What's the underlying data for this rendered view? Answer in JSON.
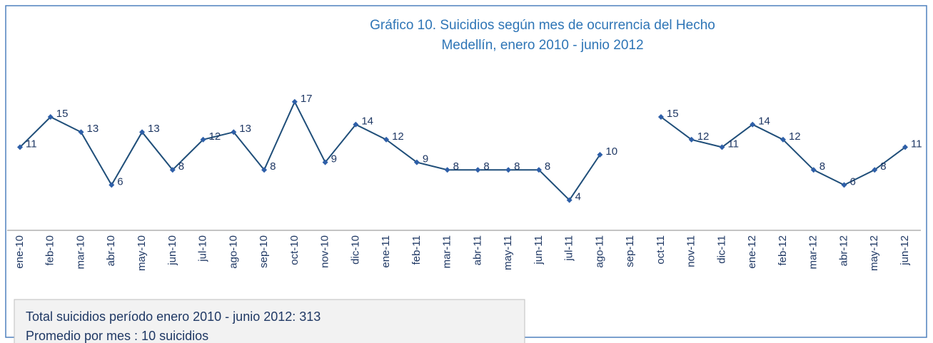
{
  "chart_data": {
    "type": "line",
    "title": "Gráfico 10.  Suicidios según mes de ocurrencia del Hecho",
    "subtitle": "Medellín, enero 2010 - junio 2012",
    "categories": [
      "ene-10",
      "feb-10",
      "mar-10",
      "abr-10",
      "may-10",
      "jun-10",
      "jul-10",
      "ago-10",
      "sep-10",
      "oct-10",
      "nov-10",
      "dic-10",
      "ene-11",
      "feb-11",
      "mar-11",
      "abr-11",
      "may-11",
      "jun-11",
      "jul-11",
      "ago-11",
      "sep-11",
      "oct-11",
      "nov-11",
      "dic-11",
      "ene-12",
      "feb-12",
      "mar-12",
      "abr-12",
      "may-12",
      "jun-12"
    ],
    "series": [
      {
        "name": "Suicidios",
        "color": "#1f4e79",
        "values": [
          11,
          15,
          13,
          6,
          13,
          8,
          12,
          13,
          8,
          17,
          9,
          14,
          12,
          9,
          8,
          8,
          8,
          8,
          4,
          10,
          null,
          15,
          12,
          11,
          14,
          12,
          8,
          6,
          8,
          11
        ]
      }
    ],
    "ylim": [
      0,
      20
    ],
    "annotations": [
      "Total suicidios período enero 2010 - junio 2012: 313",
      "Promedio por mes : 10 suicidios"
    ]
  }
}
